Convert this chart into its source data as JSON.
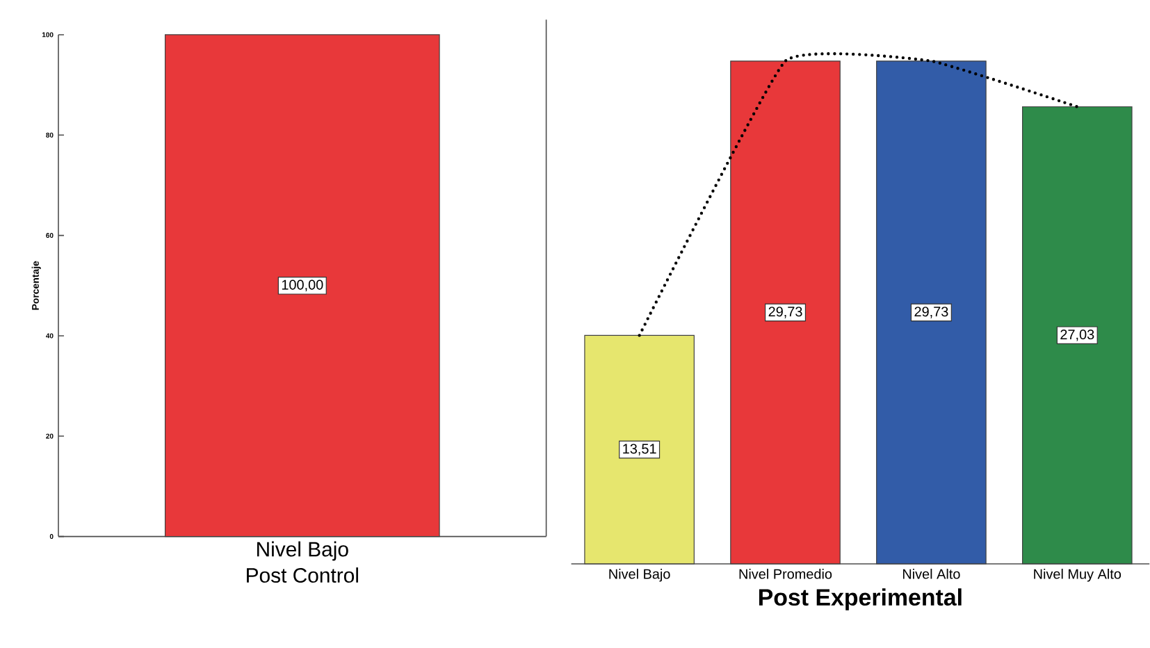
{
  "chart_data": [
    {
      "type": "bar",
      "categories": [
        "Nivel Bajo"
      ],
      "xlabel": "Post Control",
      "ylabel": "Porcentaje",
      "ylim": [
        0,
        100
      ],
      "yticks": [
        0,
        20,
        40,
        60,
        80,
        100
      ],
      "values": [
        100
      ],
      "colors": [
        "#e8383a"
      ],
      "value_labels": [
        "100,00"
      ]
    },
    {
      "type": "bar",
      "categories": [
        "Nivel Bajo",
        "Nivel Promedio",
        "Nivel Alto",
        "Nivel Muy Alto"
      ],
      "xlabel": "Post Experimental",
      "series": [
        {
          "values": [
            13.51,
            29.73,
            29.73,
            27.03
          ],
          "colors": [
            "#e6e66e",
            "#e8383a",
            "#325ca8",
            "#2e8b4a"
          ],
          "value_labels": [
            "13,51",
            "29,73",
            "29,73",
            "27,03"
          ]
        },
        {
          "type": "line",
          "values": [
            13.51,
            29.73,
            29.73,
            27.03
          ],
          "color": "#000000",
          "line_style": "dotted"
        }
      ]
    }
  ]
}
